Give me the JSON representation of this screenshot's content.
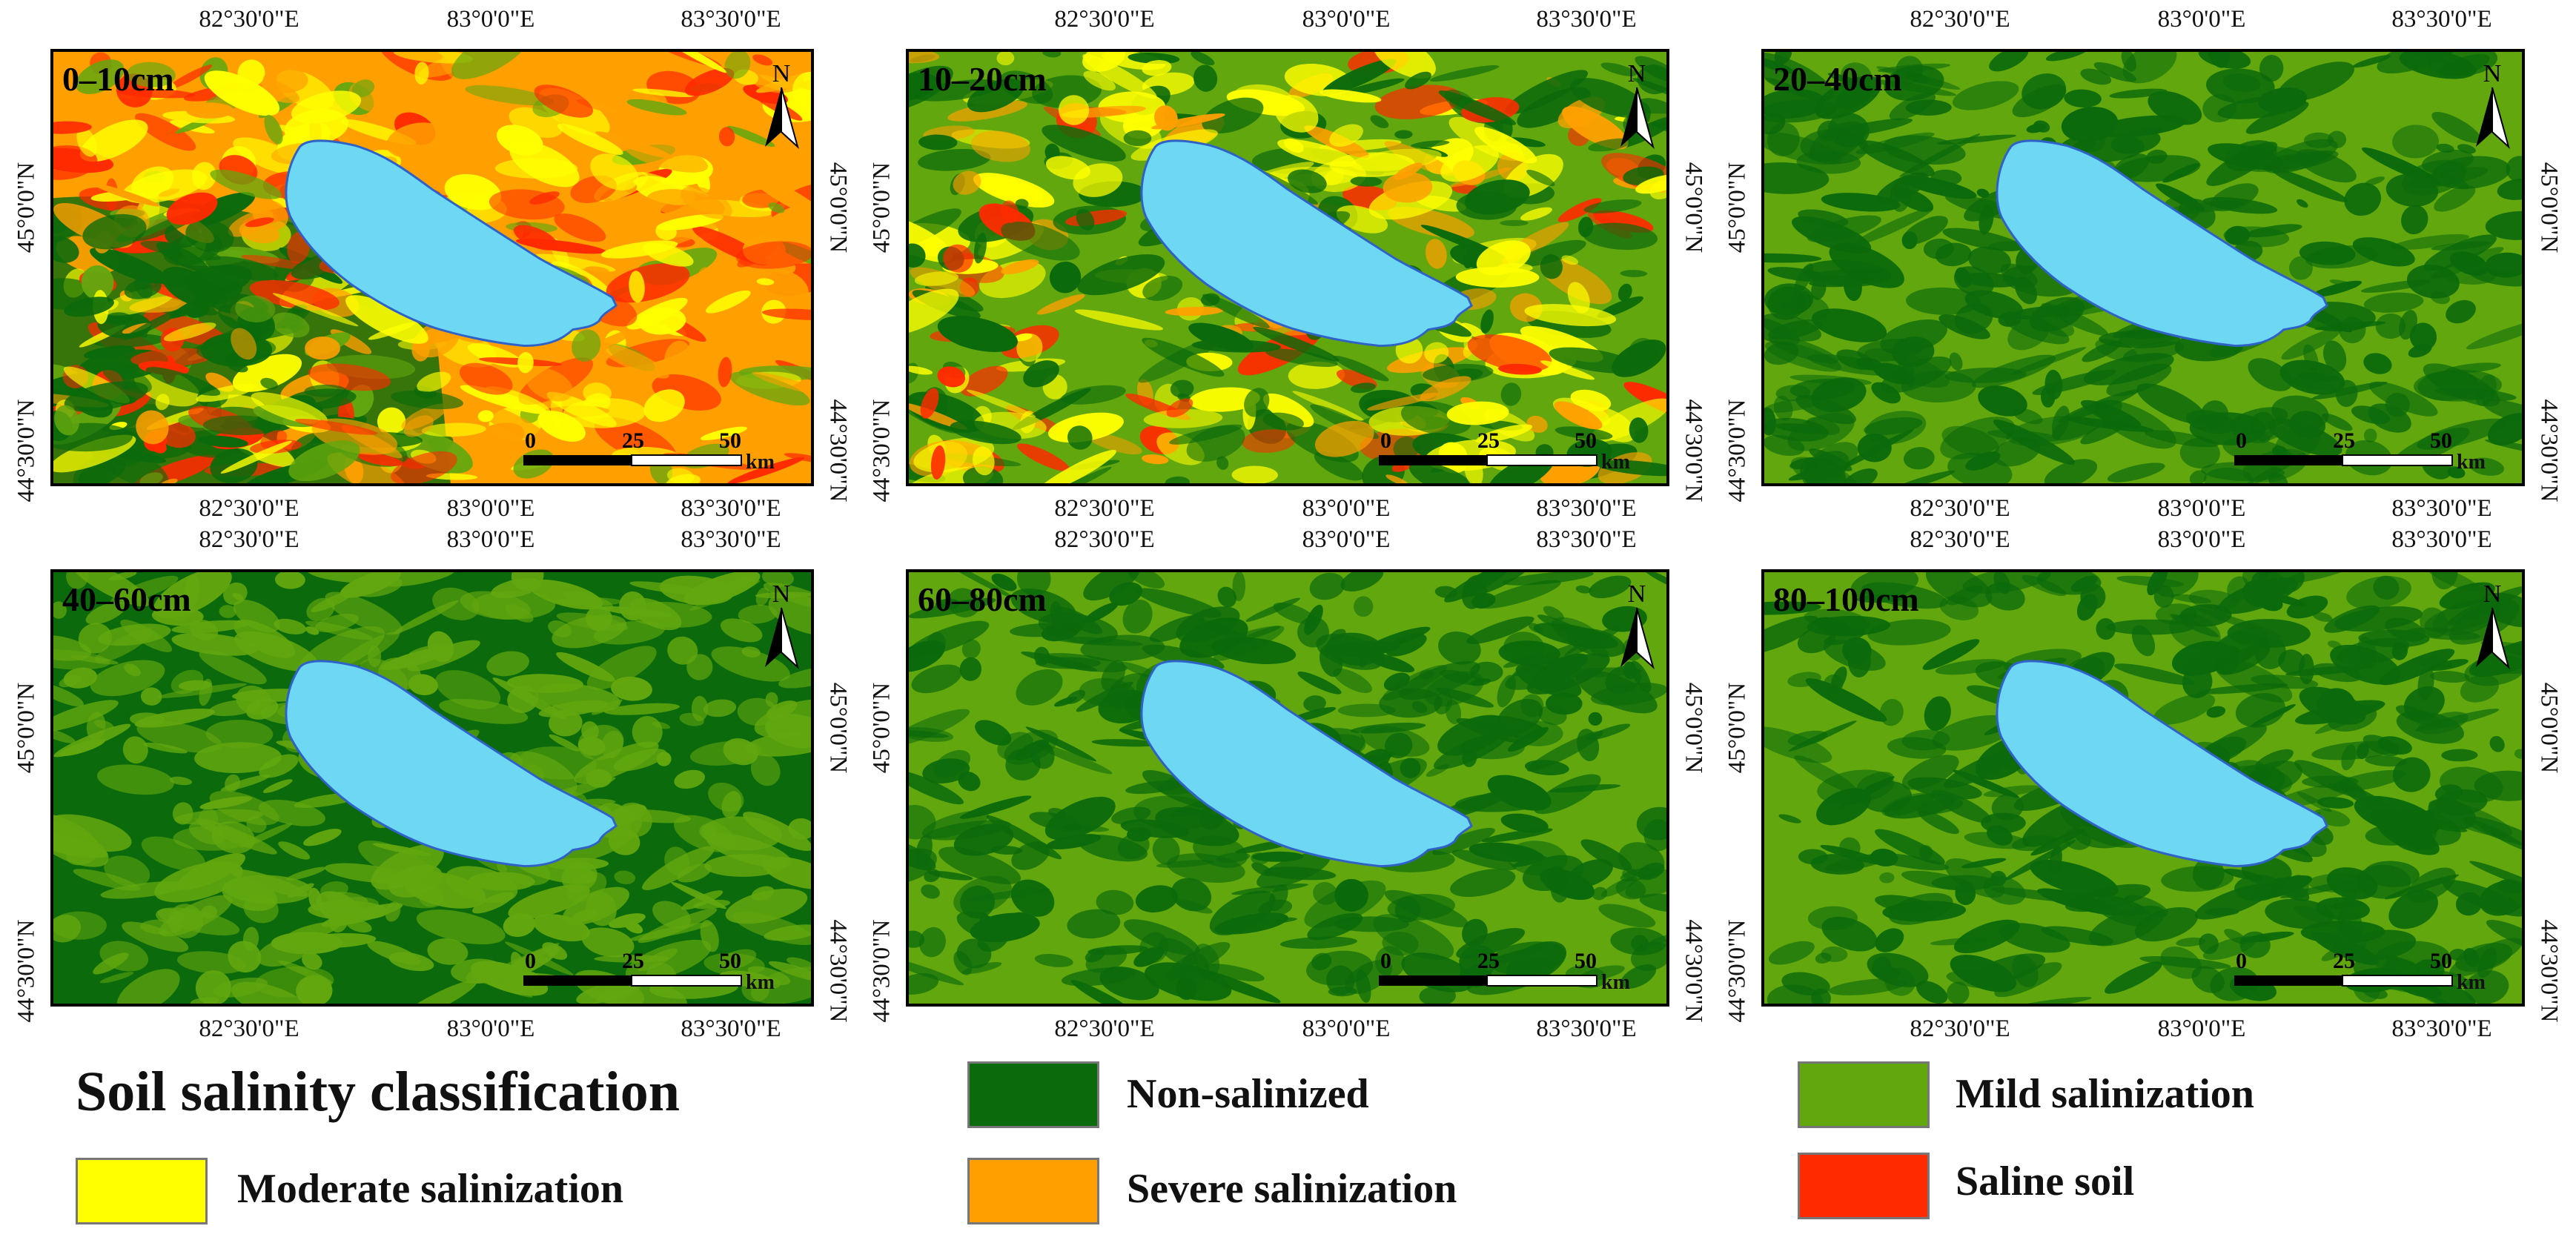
{
  "legend": {
    "title": "Soil salinity classification",
    "classes": [
      {
        "key": "non",
        "label": "Non-salinized",
        "color": "#0b6a0b"
      },
      {
        "key": "mild",
        "label": "Mild salinization",
        "color": "#63a70f"
      },
      {
        "key": "moderate",
        "label": "Moderate salinization",
        "color": "#ffff00"
      },
      {
        "key": "severe",
        "label": "Severe salinization",
        "color": "#ffa000"
      },
      {
        "key": "saline",
        "label": "Saline soil",
        "color": "#ff2a00"
      }
    ]
  },
  "map": {
    "lake_color": "#6ed8f2",
    "lake_border_color": "#2f62c8",
    "north_label": "N",
    "x_ticks": [
      "82°30'0\"E",
      "83°0'0\"E",
      "83°30'0\"E"
    ],
    "y_ticks": [
      "45°0'0\"N",
      "44°30'0\"N"
    ],
    "scale_labels": [
      "0",
      "25",
      "50"
    ],
    "scale_unit": "km",
    "panels": [
      {
        "depth": "0–10cm",
        "dominant": "mixed"
      },
      {
        "depth": "10–20cm",
        "dominant": "mild"
      },
      {
        "depth": "20–40cm",
        "dominant": "mild"
      },
      {
        "depth": "40–60cm",
        "dominant": "non"
      },
      {
        "depth": "60–80cm",
        "dominant": "mild"
      },
      {
        "depth": "80–100cm",
        "dominant": "mild"
      }
    ]
  }
}
